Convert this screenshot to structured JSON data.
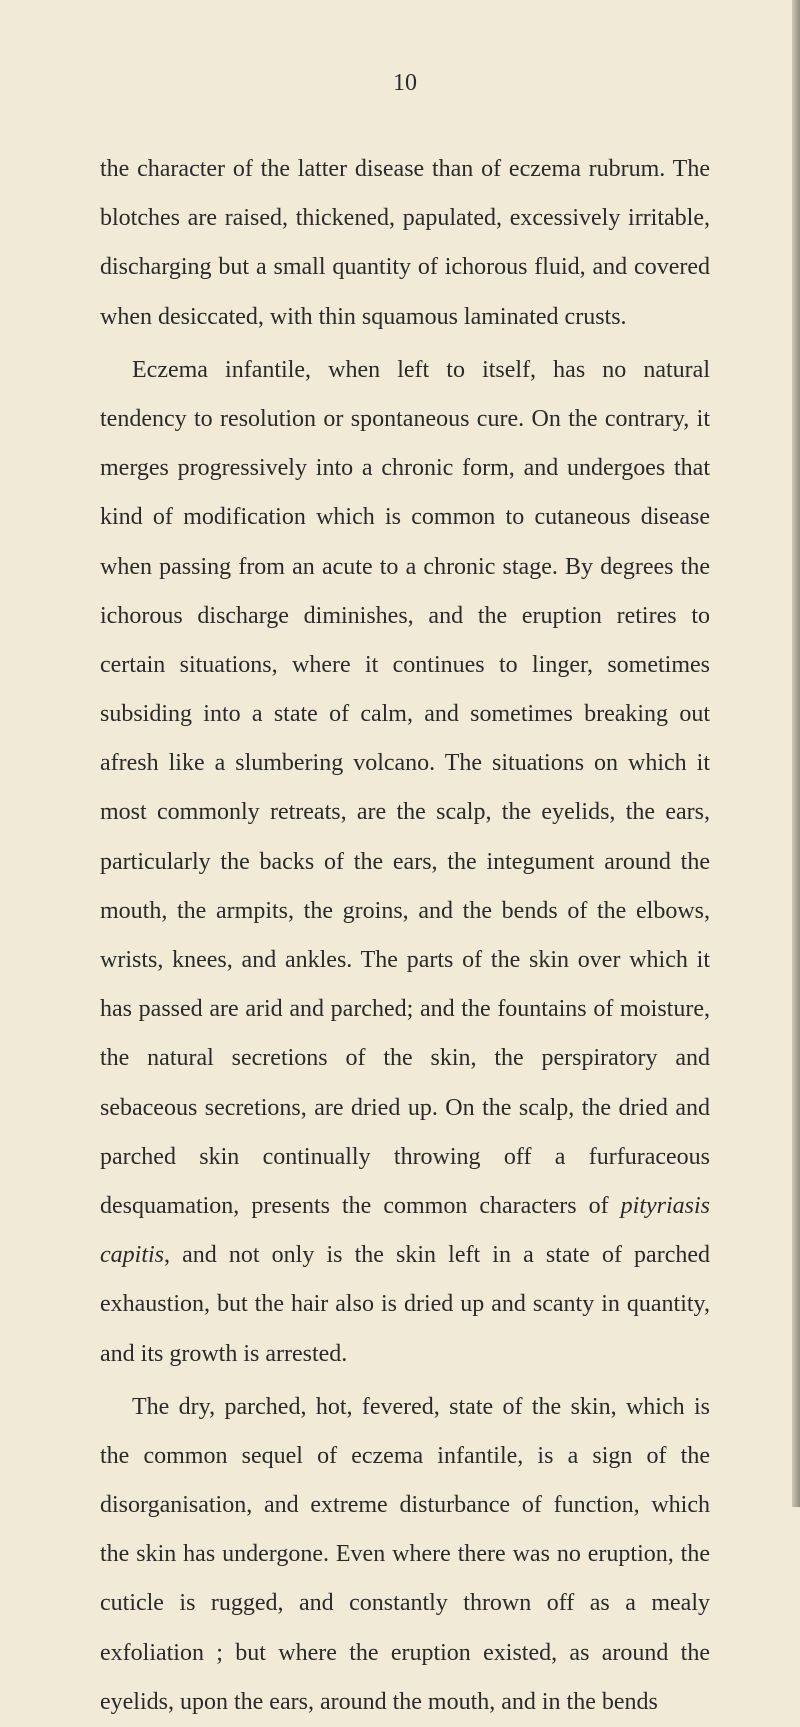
{
  "pageNumber": "10",
  "paragraphs": [
    {
      "indent": false,
      "text": "the character of the latter disease than of eczema rubrum. The blotches are raised, thickened, papulated, excessively irritable, discharging but a small quantity of ichorous fluid, and covered when desiccated, with thin squamous laminated crusts."
    },
    {
      "indent": true,
      "html": "Eczema infantile, when left to itself, has no natural tendency to resolution or spontaneous cure. On the contrary, it merges progressively into a chronic form, and undergoes that kind of modification which is common to cutaneous disease when passing from an acute to a chronic stage. By degrees the ichorous discharge diminishes, and the eruption retires to certain situations, where it continues to linger, sometimes subsiding into a state of calm, and sometimes breaking out afresh like a slumbering volcano. The situations on which it most commonly retreats, are the scalp, the eyelids, the ears, particularly the backs of the ears, the integument around the mouth, the armpits, the groins, and the bends of the elbows, wrists, knees, and ankles. The parts of the skin over which it has passed are arid and parched; and the fountains of moisture, the natural secretions of the skin, the perspiratory and sebaceous secretions, are dried up. On the scalp, the dried and parched skin continually throwing off a furfuraceous desquamation, presents the common characters of <em class=\"italic\">pityriasis capitis</em>, and not only is the skin left in a state of parched exhaustion, but the hair also is dried up and scanty in quantity, and its growth is arrested."
    },
    {
      "indent": true,
      "text": "The dry, parched, hot, fevered, state of the skin, which is the common sequel of eczema infantile, is a sign of the disorganisation, and extreme disturbance of function, which the skin has undergone. Even where there was no eruption, the cuticle is rugged, and constantly thrown off as a mealy exfoliation ; but where the eruption existed, as around the eyelids, upon the ears, around the mouth, and in the bends"
    }
  ],
  "colors": {
    "background": "#f0ead6",
    "text": "#2a2a2a"
  },
  "typography": {
    "body_fontsize": 24,
    "line_height": 2.05,
    "font_family": "Georgia, Times New Roman, serif"
  }
}
